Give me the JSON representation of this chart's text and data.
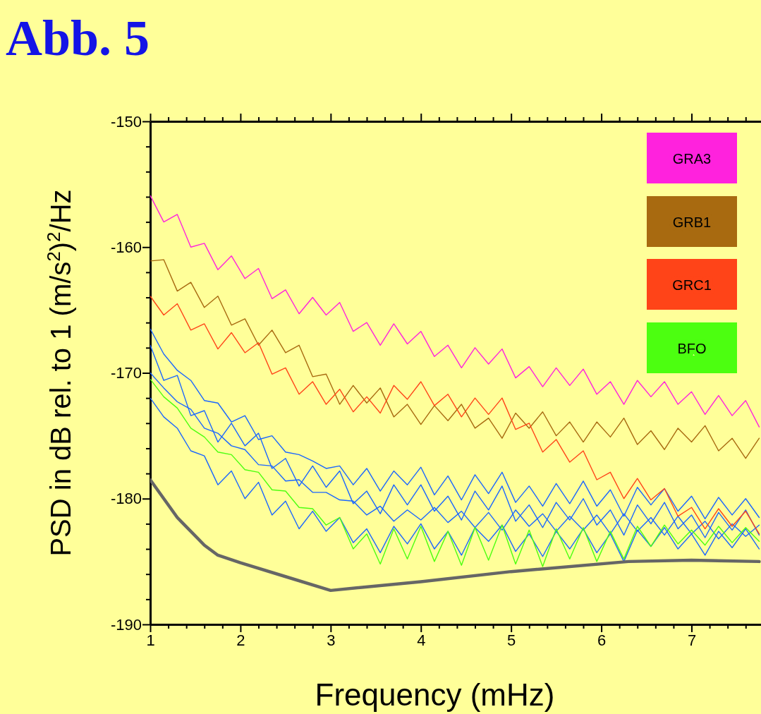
{
  "chart_data": {
    "type": "line",
    "title": "Abb. 5",
    "xlabel": "Frequency (mHz)",
    "ylabel": "PSD in dB rel. to 1 (m/s$^{2}$)$^{2}$/Hz",
    "x": [
      1,
      1.15,
      1.3,
      1.45,
      1.6,
      1.75,
      1.9,
      2.05,
      2.2,
      2.35,
      2.5,
      2.65,
      2.8,
      2.95,
      3.1,
      3.25,
      3.4,
      3.55,
      3.7,
      3.85,
      4,
      4.15,
      4.3,
      4.45,
      4.6,
      4.75,
      4.9,
      5.05,
      5.2,
      5.35,
      5.5,
      5.65,
      5.8,
      5.95,
      6.1,
      6.25,
      6.4,
      6.55,
      6.7,
      6.85,
      7,
      7.15,
      7.3,
      7.45,
      7.6,
      7.75
    ],
    "series": [
      {
        "color": "#1a66ff",
        "values": [
          -167.8,
          -170.6,
          -170.2,
          -173.4,
          -173,
          -175.5,
          -174,
          -175.8,
          -174.8,
          -177.6,
          -176.8,
          -179,
          -177.4,
          -179.1,
          -177.8,
          -180.4,
          -179.4,
          -181.2,
          -178.9,
          -180.5,
          -178.9,
          -181,
          -179.8,
          -181.7,
          -179.4,
          -180.9,
          -179,
          -181.8,
          -180.5,
          -182.3,
          -180.3,
          -181.7,
          -180,
          -182.1,
          -180.9,
          -182.9,
          -180.5,
          -182,
          -180.3,
          -182.4,
          -181.3,
          -183.1,
          -181.1,
          -182.5,
          -180.9,
          -182.9
        ]
      },
      {
        "color": "#1a66ff",
        "values": [
          -166.5,
          -168.5,
          -169.8,
          -170.6,
          -172.2,
          -172.4,
          -173.9,
          -173.4,
          -175.3,
          -175,
          -176.3,
          -176.5,
          -177,
          -177.6,
          -177.4,
          -178.9,
          -177.6,
          -179.4,
          -177.8,
          -178.9,
          -177.5,
          -179.7,
          -178.2,
          -180.1,
          -178.1,
          -179.6,
          -177.9,
          -180.3,
          -179,
          -180.6,
          -178.8,
          -180.4,
          -178.6,
          -180.6,
          -179.3,
          -181.4,
          -179.1,
          -180.5,
          -179.2,
          -181,
          -179.8,
          -181.6,
          -179.9,
          -181.3,
          -180,
          -181.5
        ]
      },
      {
        "color": "#1a66ff",
        "values": [
          -172,
          -173.5,
          -174.4,
          -176.2,
          -176.6,
          -178.9,
          -177.8,
          -180,
          -178.7,
          -181.3,
          -180.2,
          -182.4,
          -181,
          -182.6,
          -181.5,
          -183.5,
          -182.4,
          -184.3,
          -182.2,
          -183.6,
          -182,
          -184,
          -182.6,
          -184.5,
          -182.3,
          -183.4,
          -182.1,
          -184.2,
          -182.8,
          -184.6,
          -182.6,
          -184,
          -182.4,
          -184.3,
          -182.8,
          -185,
          -182.5,
          -183.8,
          -182.3,
          -184,
          -182.8,
          -184.5,
          -182.6,
          -183.9,
          -182.4,
          -184
        ]
      },
      {
        "color": "#1a66ff",
        "values": [
          -170,
          -171.2,
          -172.3,
          -172.9,
          -174.4,
          -174.8,
          -175.8,
          -176.1,
          -177.3,
          -177.4,
          -178.6,
          -178.5,
          -179.5,
          -179.5,
          -180.1,
          -180.2,
          -181.3,
          -180.6,
          -181.8,
          -180.9,
          -181.7,
          -180.7,
          -181.9,
          -181,
          -182.3,
          -181.1,
          -182.5,
          -180.9,
          -182.2,
          -181.2,
          -182.6,
          -181.4,
          -182.5,
          -181.3,
          -182.8,
          -181.2,
          -182.6,
          -181.5,
          -182.9,
          -181.4,
          -182.8,
          -181.8,
          -183.2,
          -182,
          -183,
          -182.1
        ]
      },
      {
        "name": "GRA3",
        "color": "#ff22dd",
        "values": [
          -155.9,
          -158,
          -157.4,
          -160,
          -159.7,
          -161.8,
          -160.7,
          -162.5,
          -161.7,
          -164.1,
          -163.4,
          -165.3,
          -164,
          -165.4,
          -164.4,
          -166.7,
          -166,
          -167.8,
          -166.1,
          -167.7,
          -166.7,
          -168.7,
          -167.8,
          -169.6,
          -168,
          -169.3,
          -168.1,
          -170.4,
          -169.5,
          -171.1,
          -169.6,
          -171,
          -169.7,
          -171.7,
          -170.7,
          -172.5,
          -170.6,
          -171.9,
          -170.7,
          -172.5,
          -171.5,
          -173.3,
          -171.8,
          -173.4,
          -172.2,
          -174.3
        ]
      },
      {
        "name": "GRB1",
        "color": "#a86a10",
        "values": [
          -161.1,
          -161,
          -163.5,
          -162.8,
          -164.8,
          -163.9,
          -166.2,
          -165.7,
          -167.8,
          -166.6,
          -168.4,
          -167.8,
          -170.3,
          -170.1,
          -172.5,
          -171,
          -172.4,
          -171.2,
          -173.5,
          -172.5,
          -174.1,
          -172.6,
          -173.8,
          -172.5,
          -174.4,
          -173.6,
          -175.2,
          -173.2,
          -174.4,
          -173.1,
          -175,
          -173.9,
          -175.5,
          -173.9,
          -175.1,
          -173.6,
          -175.7,
          -174.6,
          -176.1,
          -174.4,
          -175.5,
          -174.2,
          -176.2,
          -175.2,
          -176.8,
          -175.2
        ]
      },
      {
        "name": "GRC1",
        "color": "#ff4418",
        "values": [
          -163.9,
          -165.4,
          -164.5,
          -166.6,
          -166.1,
          -168.1,
          -166.8,
          -168.4,
          -167.6,
          -170.1,
          -169.6,
          -171.7,
          -170.7,
          -172.5,
          -171.3,
          -173.1,
          -171.9,
          -173.2,
          -171,
          -172.1,
          -170.7,
          -172.6,
          -171.7,
          -173.5,
          -172,
          -173.3,
          -172,
          -174.5,
          -174,
          -176.3,
          -175.3,
          -177.1,
          -176.2,
          -178.5,
          -177.9,
          -180,
          -178.4,
          -180.1,
          -179.2,
          -181.4,
          -180.7,
          -182.4,
          -180.8,
          -182.2,
          -181,
          -182.8
        ]
      },
      {
        "name": "BFO",
        "color": "#4cff10",
        "values": [
          -170.5,
          -171.9,
          -172.8,
          -174.4,
          -175.1,
          -176.3,
          -176.5,
          -177.7,
          -177.9,
          -179.3,
          -179.4,
          -180.7,
          -180.8,
          -182.1,
          -181.5,
          -184,
          -182.8,
          -185.2,
          -182.4,
          -184.8,
          -182.2,
          -185,
          -182.6,
          -185.3,
          -182.3,
          -184.9,
          -182.1,
          -185.2,
          -182.5,
          -185.4,
          -182.4,
          -184.8,
          -182.3,
          -185,
          -182.6,
          -184.8,
          -182.2,
          -183.8,
          -182.1,
          -183.6,
          -182.5,
          -183.7,
          -182.2,
          -183.5,
          -182.3,
          -183.4
        ]
      },
      {
        "color": "#666666",
        "x": [
          1,
          1.3,
          1.6,
          1.75,
          2,
          2.5,
          3,
          4,
          5,
          6.3,
          7,
          7.75
        ],
        "values": [
          -178.5,
          -181.5,
          -183.7,
          -184.5,
          -185.1,
          -186.2,
          -187.3,
          -186.6,
          -185.8,
          -185,
          -184.9,
          -185
        ]
      }
    ],
    "xlim": [
      1,
      7.77
    ],
    "ylim": [
      -190,
      -150
    ],
    "xticks": [
      1,
      {
        "value": 1.2,
        "label": null
      },
      {
        "value": 1.4,
        "label": null
      },
      {
        "value": 1.6,
        "label": null
      },
      {
        "value": 1.8,
        "label": null
      },
      2,
      {
        "value": 2.2,
        "label": null
      },
      {
        "value": 2.4,
        "label": null
      },
      {
        "value": 2.6,
        "label": null
      },
      {
        "value": 2.8,
        "label": null
      },
      3,
      {
        "value": 3.2,
        "label": null
      },
      {
        "value": 3.4,
        "label": null
      },
      {
        "value": 3.6,
        "label": null
      },
      {
        "value": 3.8,
        "label": null
      },
      4,
      {
        "value": 4.2,
        "label": null
      },
      {
        "value": 4.4,
        "label": null
      },
      {
        "value": 4.6,
        "label": null
      },
      {
        "value": 4.8,
        "label": null
      },
      5,
      {
        "value": 5.2,
        "label": null
      },
      {
        "value": 5.4,
        "label": null
      },
      {
        "value": 5.6,
        "label": null
      },
      {
        "value": 5.8,
        "label": null
      },
      6,
      {
        "value": 6.2,
        "label": null
      },
      {
        "value": 6.4,
        "label": null
      },
      {
        "value": 6.6,
        "label": null
      },
      {
        "value": 6.8,
        "label": null
      },
      7,
      {
        "value": 7.2,
        "label": null
      },
      {
        "value": 7.4,
        "label": null
      },
      {
        "value": 7.6,
        "label": null
      }
    ],
    "yticks": [
      -190,
      {
        "value": -188,
        "label": null
      },
      {
        "value": -186,
        "label": null
      },
      {
        "value": -184,
        "label": null
      },
      {
        "value": -182,
        "label": null
      },
      -180,
      {
        "value": -178,
        "label": null
      },
      {
        "value": -176,
        "label": null
      },
      {
        "value": -174,
        "label": null
      },
      {
        "value": -172,
        "label": null
      },
      -170,
      {
        "value": -168,
        "label": null
      },
      {
        "value": -166,
        "label": null
      },
      {
        "value": -164,
        "label": null
      },
      {
        "value": -162,
        "label": null
      },
      -160,
      {
        "value": -158,
        "label": null
      },
      {
        "value": -156,
        "label": null
      },
      {
        "value": -154,
        "label": null
      },
      {
        "value": -152,
        "label": null
      },
      -150
    ],
    "grid": false,
    "legend": "top right",
    "line_style": "solid",
    "marker": "none"
  }
}
